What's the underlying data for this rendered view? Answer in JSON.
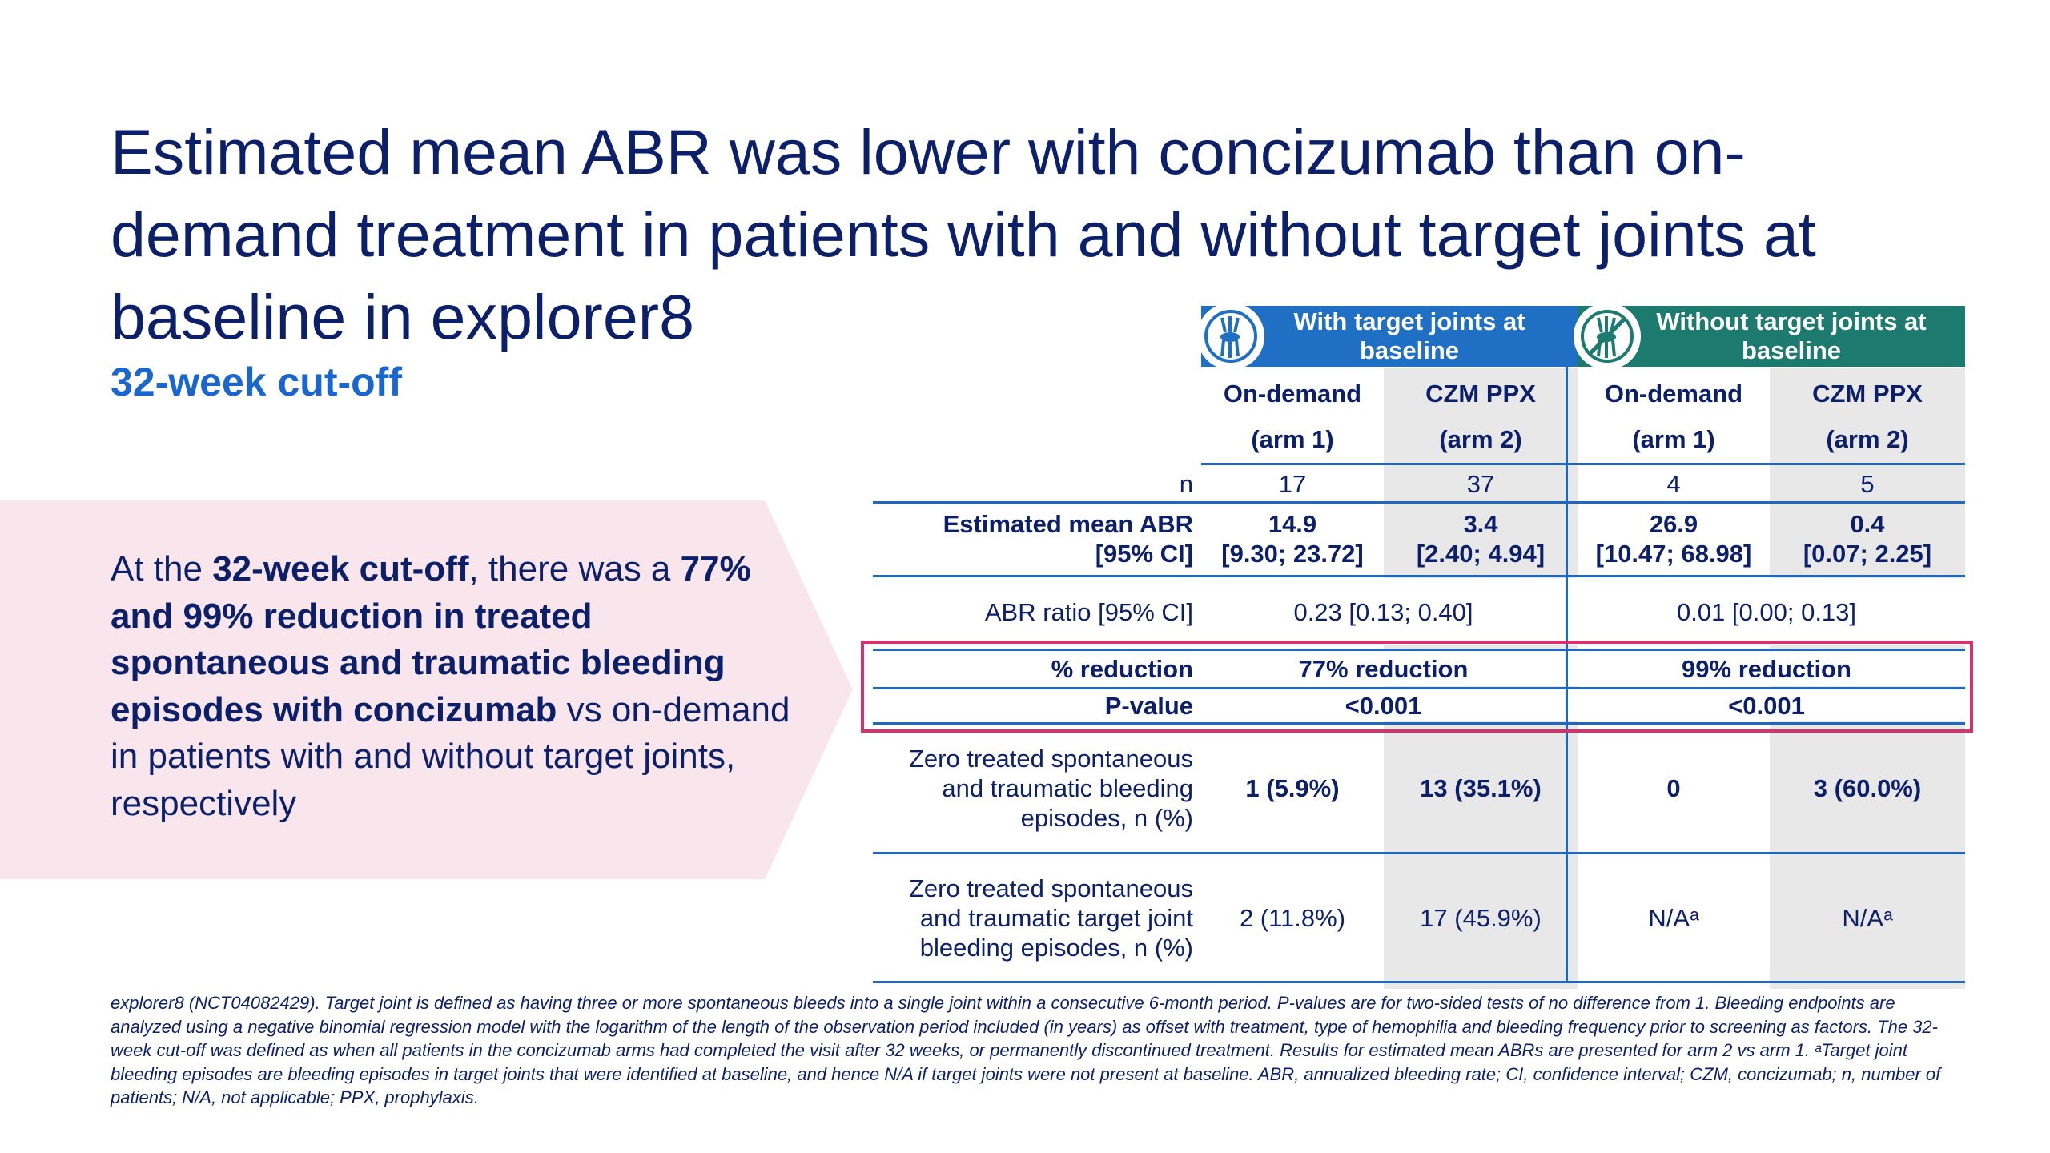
{
  "title": "Estimated mean ABR was lower with concizumab than on-demand treatment in patients with and without target joints at baseline in explorer8",
  "subtitle": "32-week cut-off",
  "callout": {
    "p1": "At the ",
    "b1": "32-week cut-off",
    "p2": ", there was a ",
    "b2": "77% and 99% reduction in treated spontaneous and traumatic bleeding episodes with concizumab",
    "p3": " vs on-demand in patients with and without target joints, respectively"
  },
  "colors": {
    "group_with": "#1f6fc4",
    "group_without": "#1c7a6e",
    "highlight": "#d6336c",
    "callout_bg": "#f9e6ec"
  },
  "table": {
    "groups": [
      {
        "label": "With target joints at baseline",
        "icon": "joint-icon"
      },
      {
        "label": "Without target joints at baseline",
        "icon": "joint-crossed-icon"
      }
    ],
    "columns": [
      {
        "line1": "On-demand",
        "line2": "(arm 1)"
      },
      {
        "line1": "CZM PPX",
        "line2": "(arm 2)"
      },
      {
        "line1": "On-demand",
        "line2": "(arm 1)"
      },
      {
        "line1": "CZM PPX",
        "line2": "(arm 2)"
      }
    ],
    "n": {
      "label": "n",
      "values": [
        "17",
        "37",
        "4",
        "5"
      ]
    },
    "abr": {
      "label_line1": "Estimated mean ABR",
      "label_line2": "[95% CI]",
      "values": [
        {
          "mean": "14.9",
          "ci": "[9.30; 23.72]"
        },
        {
          "mean": "3.4",
          "ci": "[2.40; 4.94]"
        },
        {
          "mean": "26.9",
          "ci": "[10.47; 68.98]"
        },
        {
          "mean": "0.4",
          "ci": "[0.07; 2.25]"
        }
      ]
    },
    "ratio": {
      "label": "ABR ratio [95% CI]",
      "with": "0.23 [0.13; 0.40]",
      "without": "0.01 [0.00; 0.13]"
    },
    "reduction": {
      "label": "% reduction",
      "with": "77% reduction",
      "without": "99% reduction"
    },
    "pvalue": {
      "label": "P-value",
      "with": "<0.001",
      "without": "<0.001"
    },
    "zero_bleeds": {
      "label_line1": "Zero treated spontaneous",
      "label_line2": "and traumatic bleeding",
      "label_line3": "episodes, n (%)",
      "values": [
        "1 (5.9%)",
        "13 (35.1%)",
        "0",
        "3 (60.0%)"
      ]
    },
    "zero_joint_bleeds": {
      "label_line1": "Zero treated spontaneous",
      "label_line2": "and traumatic target joint",
      "label_line3": "bleeding episodes, n (%)",
      "values": [
        "2 (11.8%)",
        "17 (45.9%)",
        "N/Aᵃ",
        "N/Aᵃ"
      ]
    }
  },
  "footnote": "explorer8 (NCT04082429). Target joint is defined as having three or more spontaneous bleeds into a single joint within a consecutive 6-month period. P-values are for two-sided tests of no difference from 1. Bleeding endpoints are analyzed using a negative binomial regression model with the logarithm of the length of the observation period included (in years) as offset with treatment, type of hemophilia and bleeding frequency prior to screening as factors. The 32-week cut-off was defined as when all patients in the concizumab arms had completed the visit after 32 weeks, or permanently discontinued treatment. Results for estimated mean ABRs are presented for arm 2 vs arm 1. ᵃTarget joint bleeding episodes are bleeding episodes in target joints that were identified at baseline, and hence N/A if target joints were not present at baseline. ABR, annualized bleeding rate; CI, confidence interval; CZM, concizumab; n, number of patients; N/A, not applicable; PPX, prophylaxis."
}
